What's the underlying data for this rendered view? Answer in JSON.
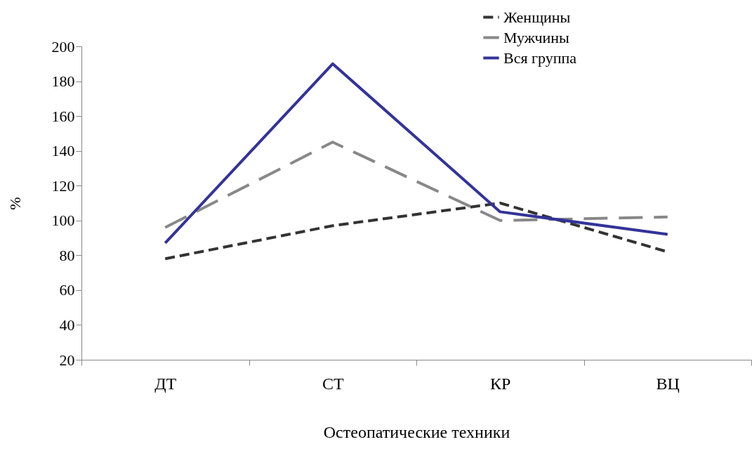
{
  "chart_data": {
    "type": "line",
    "xlabel": "Остеопатические техники",
    "ylabel": "%",
    "categories": [
      "ДТ",
      "СТ",
      "КР",
      "ВЦ"
    ],
    "ylim": [
      20,
      200
    ],
    "yticks": [
      20,
      40,
      60,
      80,
      100,
      120,
      140,
      160,
      180,
      200
    ],
    "grid": false,
    "legend": "top right",
    "series": [
      {
        "name": "Женщины",
        "color": "#333333",
        "line_style": "dashed",
        "values": [
          78,
          97,
          110,
          82
        ]
      },
      {
        "name": "Мужчины",
        "color": "#888888",
        "line_style": "dashed",
        "values": [
          96,
          145,
          100,
          102
        ]
      },
      {
        "name": "Вся группа",
        "color": "#333399",
        "line_style": "solid",
        "values": [
          87,
          190,
          105,
          92
        ]
      }
    ]
  }
}
